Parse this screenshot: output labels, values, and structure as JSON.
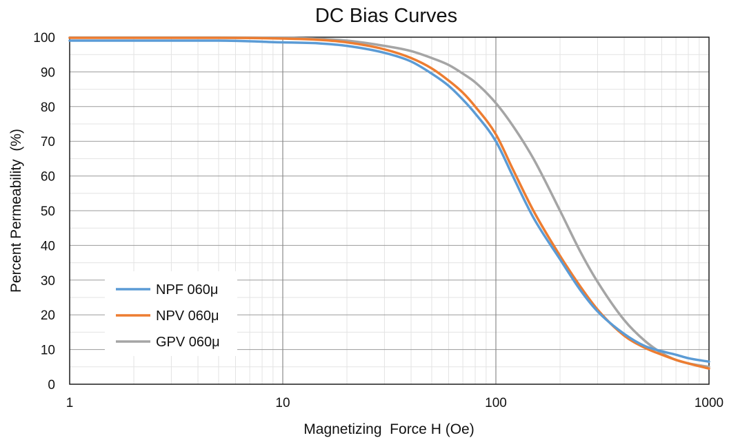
{
  "chart_data": {
    "type": "line",
    "title": "DC Bias Curves",
    "xlabel": "Magnetizing  Force H (Oe)",
    "ylabel": "Percent Permeability  (%)",
    "xscale": "log",
    "xlim": [
      1,
      1000
    ],
    "ylim": [
      0,
      100
    ],
    "x_ticks": [
      "1",
      "10",
      "100",
      "1000"
    ],
    "y_ticks": [
      "0",
      "10",
      "20",
      "30",
      "40",
      "50",
      "60",
      "70",
      "80",
      "90",
      "100"
    ],
    "grid": true,
    "legend_position": "bottom-left",
    "series": [
      {
        "name": "NPF 060μ",
        "color": "#5b9bd5",
        "x": [
          1,
          2,
          5,
          10,
          15,
          20,
          30,
          40,
          50,
          60,
          70,
          80,
          100,
          120,
          150,
          200,
          250,
          300,
          400,
          500,
          600,
          700,
          800,
          1000
        ],
        "y": [
          99,
          99,
          99,
          98.5,
          98.2,
          97.5,
          95.5,
          93,
          89.5,
          86,
          82,
          78,
          70,
          60,
          48,
          36,
          27,
          21,
          14.5,
          11,
          9.5,
          8.5,
          7.5,
          6.5
        ]
      },
      {
        "name": "NPV 060μ",
        "color": "#ed7d31",
        "x": [
          1,
          2,
          5,
          10,
          15,
          20,
          30,
          40,
          50,
          60,
          70,
          80,
          100,
          120,
          150,
          200,
          250,
          300,
          400,
          500,
          600,
          700,
          800,
          1000
        ],
        "y": [
          99.8,
          99.8,
          99.8,
          99.6,
          99.2,
          98.5,
          96.5,
          94,
          91,
          87.5,
          84,
          80,
          72,
          62,
          50,
          37,
          28,
          21.5,
          14,
          10.5,
          8.5,
          7,
          6,
          4.5
        ]
      },
      {
        "name": "GPV 060μ",
        "color": "#a5a5a5",
        "x": [
          1,
          2,
          5,
          10,
          15,
          20,
          30,
          40,
          50,
          60,
          70,
          80,
          100,
          120,
          150,
          200,
          250,
          300,
          400,
          500,
          600,
          700,
          800,
          1000
        ],
        "y": [
          99.9,
          99.9,
          99.9,
          99.8,
          99.5,
          99,
          97.5,
          96,
          94,
          92,
          89.5,
          87,
          81,
          74.5,
          65,
          50,
          38,
          29.5,
          18.5,
          12.5,
          9,
          7,
          6,
          5
        ]
      }
    ]
  }
}
